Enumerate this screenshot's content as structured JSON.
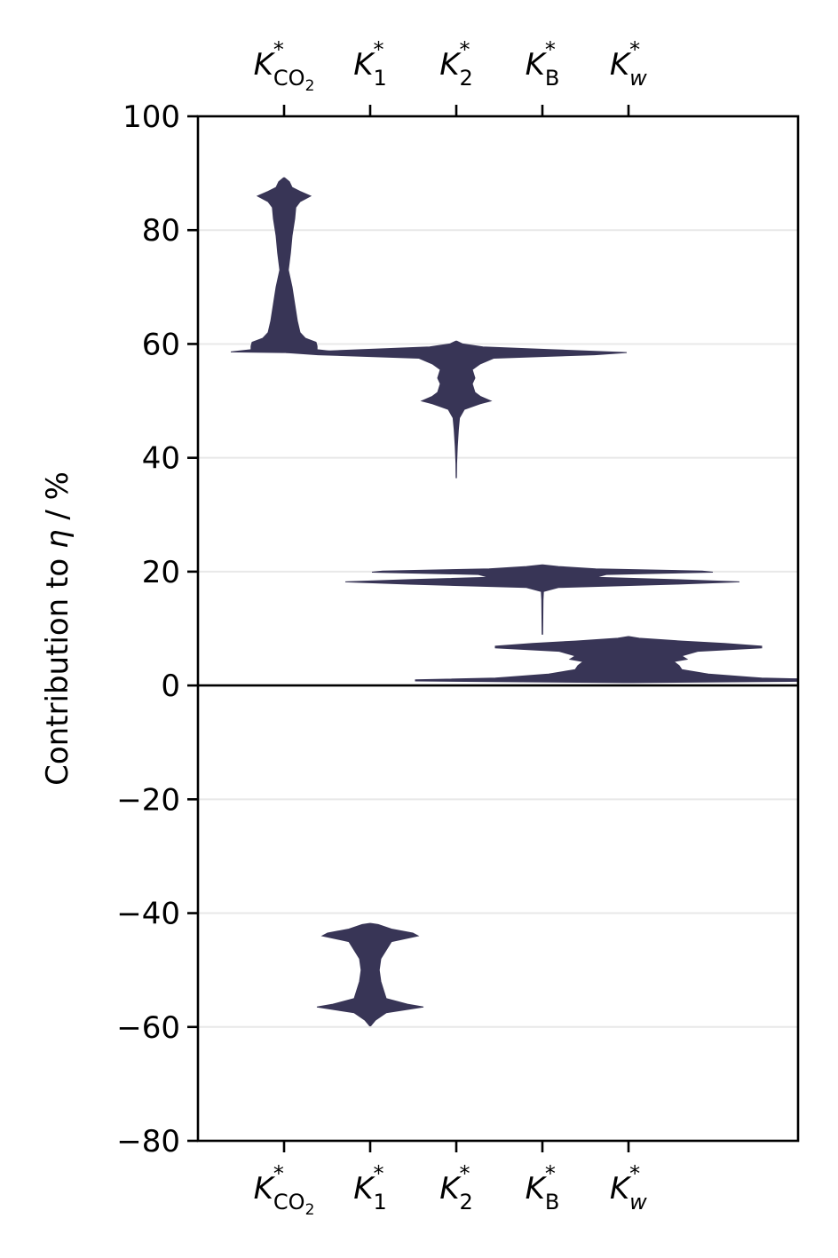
{
  "chart_data": {
    "type": "violin",
    "ylabel_prefix": "Contribution to ",
    "ylabel_symbol": "η",
    "ylabel_suffix": " / %",
    "ylim": [
      -80,
      100
    ],
    "yticks": [
      100,
      80,
      60,
      40,
      20,
      0,
      -20,
      -40,
      -60,
      -80
    ],
    "ytick_labels": [
      "100",
      "80",
      "60",
      "40",
      "20",
      "0",
      "−20",
      "−40",
      "−60",
      "−80"
    ],
    "grid": "horizontal",
    "zero_line": true,
    "color": "#383556",
    "categories": [
      {
        "base": "K",
        "sup": "*",
        "sub": "CO",
        "sub2": "2",
        "italic_sub": false
      },
      {
        "base": "K",
        "sup": "*",
        "sub": "1",
        "italic_sub": false
      },
      {
        "base": "K",
        "sup": "*",
        "sub": "2",
        "italic_sub": false
      },
      {
        "base": "K",
        "sup": "*",
        "sub": "B",
        "italic_sub": false
      },
      {
        "base": "K",
        "sup": "*",
        "sub": "w",
        "italic_sub": true
      }
    ],
    "x_positions": [
      1,
      2,
      3,
      4,
      5
    ],
    "xlim": [
      0,
      7
    ],
    "violins": [
      {
        "category": "K*CO2",
        "x": 1,
        "profile": [
          [
            58.5,
            0.03
          ],
          [
            58.6,
            1.0
          ],
          [
            59.0,
            0.62
          ],
          [
            59.6,
            0.62
          ],
          [
            60.3,
            0.6
          ],
          [
            61.0,
            0.4
          ],
          [
            62.0,
            0.3
          ],
          [
            64.0,
            0.25
          ],
          [
            67.0,
            0.2
          ],
          [
            70.0,
            0.15
          ],
          [
            73.0,
            0.08
          ],
          [
            76.0,
            0.12
          ],
          [
            79.0,
            0.15
          ],
          [
            82.0,
            0.2
          ],
          [
            84.0,
            0.22
          ],
          [
            85.0,
            0.3
          ],
          [
            86.0,
            0.5
          ],
          [
            86.8,
            0.3
          ],
          [
            87.5,
            0.15
          ],
          [
            88.5,
            0.1
          ],
          [
            89.2,
            0.01
          ]
        ]
      },
      {
        "category": "K*1",
        "x": 2,
        "profile": [
          [
            -59.8,
            0.01
          ],
          [
            -58.8,
            0.1
          ],
          [
            -57.5,
            0.3
          ],
          [
            -56.5,
            1.0
          ],
          [
            -56.0,
            0.7
          ],
          [
            -55.0,
            0.3
          ],
          [
            -53.5,
            0.25
          ],
          [
            -52.0,
            0.2
          ],
          [
            -50.0,
            0.17
          ],
          [
            -48.0,
            0.2
          ],
          [
            -46.5,
            0.3
          ],
          [
            -45.0,
            0.4
          ],
          [
            -44.0,
            0.9
          ],
          [
            -43.5,
            0.8
          ],
          [
            -42.8,
            0.4
          ],
          [
            -42.0,
            0.15
          ],
          [
            -41.8,
            0.01
          ]
        ]
      },
      {
        "category": "K*2",
        "x": 3,
        "profile": [
          [
            36.5,
            0.003
          ],
          [
            39.0,
            0.006
          ],
          [
            42.0,
            0.02
          ],
          [
            45.0,
            0.04
          ],
          [
            47.0,
            0.06
          ],
          [
            48.5,
            0.15
          ],
          [
            49.5,
            0.45
          ],
          [
            50.0,
            0.65
          ],
          [
            50.8,
            0.45
          ],
          [
            51.5,
            0.35
          ],
          [
            53.0,
            0.3
          ],
          [
            54.0,
            0.35
          ],
          [
            55.5,
            0.3
          ],
          [
            56.5,
            0.45
          ],
          [
            57.5,
            0.7
          ],
          [
            58.1,
            2.6
          ],
          [
            58.5,
            3.2
          ],
          [
            59.0,
            1.8
          ],
          [
            59.5,
            0.5
          ],
          [
            60.0,
            0.12
          ],
          [
            60.5,
            0.01
          ]
        ]
      },
      {
        "category": "K*B",
        "x": 4,
        "profile": [
          [
            9.0,
            0.005
          ],
          [
            12.0,
            0.008
          ],
          [
            15.0,
            0.012
          ],
          [
            16.5,
            0.02
          ],
          [
            17.2,
            0.3
          ],
          [
            17.8,
            2.5
          ],
          [
            18.2,
            3.7
          ],
          [
            18.6,
            2.5
          ],
          [
            19.0,
            1.0
          ],
          [
            19.5,
            1.2
          ],
          [
            19.9,
            3.2
          ],
          [
            20.1,
            3.0
          ],
          [
            20.5,
            1.0
          ],
          [
            20.9,
            0.3
          ],
          [
            21.2,
            0.01
          ]
        ]
      },
      {
        "category": "K*w",
        "x": 5,
        "profile": [
          [
            0.5,
            0.1
          ],
          [
            0.8,
            4.0
          ],
          [
            1.0,
            4.0
          ],
          [
            1.3,
            2.5
          ],
          [
            2.0,
            1.5
          ],
          [
            2.8,
            1.0
          ],
          [
            3.5,
            0.95
          ],
          [
            4.2,
            0.85
          ],
          [
            4.6,
            1.1
          ],
          [
            5.2,
            1.0
          ],
          [
            6.0,
            1.3
          ],
          [
            6.6,
            2.5
          ],
          [
            6.9,
            2.5
          ],
          [
            7.4,
            1.8
          ],
          [
            7.8,
            1.0
          ],
          [
            8.3,
            0.2
          ],
          [
            8.6,
            0.01
          ]
        ]
      }
    ]
  }
}
